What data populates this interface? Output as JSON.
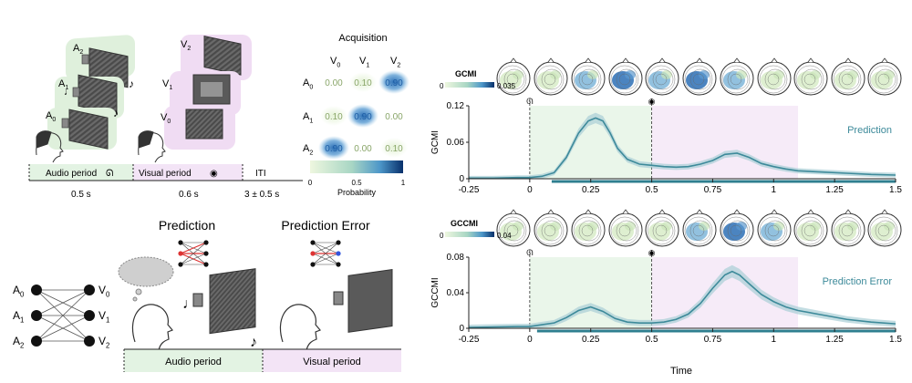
{
  "colors": {
    "audio_band": "#e3f3e3",
    "visual_band": "#f3e4f6",
    "audio_screen_bg": "#d9f0d9",
    "visual_screen_bg": "#efd9f3",
    "curve": "#3d8a9a",
    "curve_band": "#a9cfd6",
    "significance_bar": "#2f7f8f",
    "cell_text_muted": "#8aa66a",
    "cell_text_blue": "#1f5fa6",
    "colormap": [
      "#eef7df",
      "#a8d6c4",
      "#4d97c9",
      "#08306b"
    ]
  },
  "left": {
    "audio_labels": [
      "A",
      "A",
      "A"
    ],
    "audio_subs": [
      "2",
      "1",
      "0"
    ],
    "visual_labels": [
      "V",
      "V",
      "V"
    ],
    "visual_subs": [
      "2",
      "1",
      "0"
    ],
    "timeline": {
      "audio_period": "Audio period",
      "visual_period": "Visual period",
      "iti": "ITI",
      "audio_duration": "0.5 s",
      "visual_duration": "0.6 s",
      "iti_duration": "3 ± 0.5 s"
    },
    "acquisition": {
      "title": "Acquisition",
      "col_labels": [
        "V",
        "V",
        "V"
      ],
      "col_subs": [
        "0",
        "1",
        "2"
      ],
      "row_labels": [
        "A",
        "A",
        "A"
      ],
      "row_subs": [
        "0",
        "1",
        "2"
      ],
      "matrix": [
        [
          0.0,
          0.1,
          0.9
        ],
        [
          0.1,
          0.9,
          0.0
        ],
        [
          0.9,
          0.0,
          0.1
        ]
      ],
      "matrix_text": [
        [
          "0.00",
          "0.10",
          "0.90"
        ],
        [
          "0.10",
          "0.90",
          "0.00"
        ],
        [
          "0.90",
          "0.00",
          "0.10"
        ]
      ],
      "colorbar_ticks": [
        "0",
        "0.5",
        "1"
      ],
      "colorbar_label": "Probability"
    },
    "network": {
      "left_labels": [
        "A",
        "A",
        "A"
      ],
      "left_subs": [
        "0",
        "1",
        "2"
      ],
      "right_labels": [
        "V",
        "V",
        "V"
      ],
      "right_subs": [
        "0",
        "1",
        "2"
      ]
    },
    "bottom": {
      "prediction_title": "Prediction",
      "prediction_error_title": "Prediction Error",
      "audio_period": "Audio period",
      "visual_period": "Visual period"
    }
  },
  "right": {
    "top_colorbar": {
      "label": "GCMI",
      "min": "0",
      "max": "0.035"
    },
    "bottom_colorbar": {
      "label": "GCCMI",
      "min": "0",
      "max": "0.04"
    },
    "x_label": "Time",
    "x_tick_labels": [
      "-0.25",
      "0",
      "0.25",
      "0.5",
      "0.75",
      "1",
      "1.25",
      "1.5"
    ]
  },
  "chart_data": [
    {
      "type": "line",
      "title": "",
      "xlabel": "",
      "ylabel": "GCMI",
      "ylim": [
        0,
        0.12
      ],
      "xlim": [
        -0.25,
        1.5
      ],
      "x_ticks": [
        -0.25,
        0,
        0.25,
        0.5,
        0.75,
        1,
        1.25,
        1.5
      ],
      "y_ticks": [
        0,
        0.06,
        0.12
      ],
      "y_tick_labels": [
        "0",
        "0.06",
        "0.12"
      ],
      "series": [
        {
          "name": "Prediction",
          "x": [
            -0.25,
            -0.15,
            -0.05,
            0,
            0.05,
            0.1,
            0.15,
            0.2,
            0.24,
            0.27,
            0.3,
            0.33,
            0.36,
            0.4,
            0.45,
            0.5,
            0.55,
            0.6,
            0.65,
            0.7,
            0.75,
            0.8,
            0.85,
            0.9,
            0.95,
            1.0,
            1.05,
            1.1,
            1.2,
            1.3,
            1.4,
            1.5
          ],
          "values": [
            0.001,
            0.001,
            0.002,
            0.002,
            0.004,
            0.01,
            0.035,
            0.075,
            0.095,
            0.1,
            0.095,
            0.075,
            0.05,
            0.032,
            0.024,
            0.022,
            0.02,
            0.019,
            0.02,
            0.024,
            0.03,
            0.04,
            0.042,
            0.035,
            0.025,
            0.02,
            0.016,
            0.013,
            0.011,
            0.009,
            0.007,
            0.006
          ]
        }
      ],
      "band_halfwidth": 0.006,
      "significance_from": 0.09,
      "dashed_vlines": [
        0,
        0.5
      ],
      "shaded_regions": [
        {
          "from": 0,
          "to": 0.5,
          "period": "audio"
        },
        {
          "from": 0.5,
          "to": 1.1,
          "period": "visual"
        }
      ]
    },
    {
      "type": "line",
      "title": "",
      "xlabel": "Time",
      "ylabel": "GCCMI",
      "ylim": [
        0,
        0.08
      ],
      "xlim": [
        -0.25,
        1.5
      ],
      "x_ticks": [
        -0.25,
        0,
        0.25,
        0.5,
        0.75,
        1,
        1.25,
        1.5
      ],
      "y_ticks": [
        0,
        0.04,
        0.08
      ],
      "y_tick_labels": [
        "0",
        "0.04",
        "0.08"
      ],
      "series": [
        {
          "name": "Prediction Error",
          "x": [
            -0.25,
            -0.15,
            -0.05,
            0,
            0.05,
            0.1,
            0.15,
            0.2,
            0.25,
            0.3,
            0.35,
            0.4,
            0.45,
            0.5,
            0.55,
            0.6,
            0.65,
            0.7,
            0.75,
            0.8,
            0.83,
            0.86,
            0.9,
            0.95,
            1.0,
            1.05,
            1.1,
            1.2,
            1.3,
            1.4,
            1.5
          ],
          "values": [
            0.001,
            0.0015,
            0.002,
            0.002,
            0.004,
            0.006,
            0.012,
            0.02,
            0.024,
            0.019,
            0.011,
            0.007,
            0.006,
            0.006,
            0.007,
            0.01,
            0.016,
            0.028,
            0.045,
            0.06,
            0.064,
            0.06,
            0.05,
            0.038,
            0.03,
            0.024,
            0.02,
            0.015,
            0.01,
            0.007,
            0.005
          ]
        }
      ],
      "band_halfwidth": 0.005,
      "significance_from": 0.03,
      "dashed_vlines": [
        0,
        0.5
      ],
      "shaded_regions": [
        {
          "from": 0,
          "to": 0.5,
          "period": "audio"
        },
        {
          "from": 0.5,
          "to": 1.1,
          "period": "visual"
        }
      ]
    }
  ]
}
